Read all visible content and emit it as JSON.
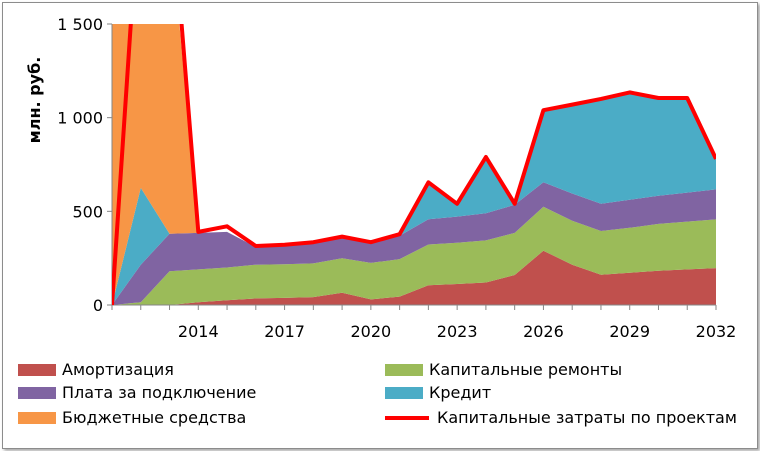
{
  "chart_data": {
    "type": "area",
    "ylabel": "млн. руб.",
    "ylim": [
      0,
      1500
    ],
    "yticks": [
      "0",
      "500",
      "1 000",
      "1 500"
    ],
    "x": [
      2011,
      2012,
      2013,
      2014,
      2015,
      2016,
      2017,
      2018,
      2019,
      2020,
      2021,
      2022,
      2023,
      2024,
      2025,
      2026,
      2027,
      2028,
      2029,
      2030,
      2031,
      2032
    ],
    "xtick_labels": [
      "2014",
      "2017",
      "2020",
      "2023",
      "2026",
      "2029",
      "2032"
    ],
    "stacked_series": [
      {
        "name": "Амортизация",
        "color": "#c0504d",
        "values": [
          0,
          0,
          0,
          15,
          25,
          35,
          38,
          42,
          65,
          30,
          45,
          105,
          112,
          120,
          160,
          290,
          215,
          162,
          172,
          183,
          190,
          197
        ]
      },
      {
        "name": "Капитальные ремонты",
        "color": "#9bbb59",
        "values": [
          0,
          15,
          180,
          175,
          175,
          180,
          180,
          180,
          185,
          195,
          200,
          218,
          220,
          225,
          225,
          235,
          235,
          233,
          240,
          250,
          255,
          260
        ]
      },
      {
        "name": "Плата за подключение",
        "color": "#8064a2",
        "values": [
          0,
          200,
          200,
          195,
          190,
          95,
          105,
          110,
          110,
          105,
          125,
          135,
          140,
          145,
          150,
          130,
          145,
          145,
          150,
          150,
          155,
          160
        ]
      },
      {
        "name": "Кредит",
        "color": "#4bacc6",
        "values": [
          0,
          410,
          0,
          0,
          0,
          0,
          0,
          0,
          0,
          0,
          0,
          200,
          65,
          290,
          0,
          380,
          475,
          560,
          570,
          520,
          500,
          165
        ]
      },
      {
        "name": "Бюджетные средства",
        "color": "#f79646",
        "values": [
          1700,
          1700,
          1700,
          0,
          0,
          0,
          0,
          0,
          0,
          0,
          0,
          0,
          0,
          0,
          0,
          0,
          0,
          0,
          0,
          0,
          0,
          0
        ]
      }
    ],
    "line_series": {
      "name": "Капитальные затраты по проектам",
      "color": "#ff0000",
      "values": [
        0,
        2300,
        2300,
        390,
        420,
        315,
        322,
        335,
        365,
        335,
        378,
        655,
        540,
        790,
        540,
        1040,
        1070,
        1100,
        1135,
        1105,
        1105,
        780
      ]
    },
    "legend_position": "bottom",
    "grid": false
  }
}
